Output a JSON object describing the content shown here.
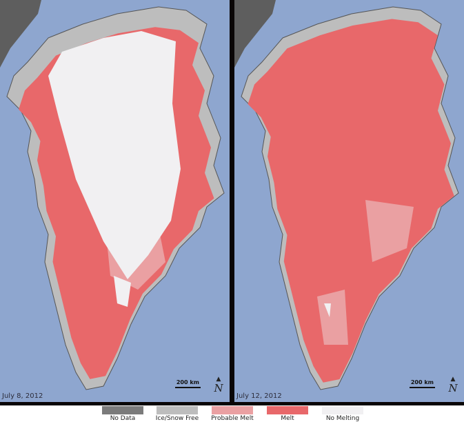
{
  "panels": [
    {
      "date": "July 8, 2012",
      "scale_label": "200 km",
      "north_label": "N"
    },
    {
      "date": "July 12, 2012",
      "scale_label": "200 km",
      "north_label": "N"
    }
  ],
  "legend": [
    {
      "label": "No Data",
      "color": "#7b7b7b"
    },
    {
      "label": "Ice/Snow Free",
      "color": "#bdbdbd"
    },
    {
      "label": "Probable Melt",
      "color": "#eaa0a2"
    },
    {
      "label": "Melt",
      "color": "#e8686a"
    },
    {
      "label": "No Melting",
      "color": "#f1f0f2"
    }
  ],
  "colors": {
    "ocean": "#8ea6cf",
    "other_land": "#5e5e5e",
    "land": "#bdbdbd"
  }
}
